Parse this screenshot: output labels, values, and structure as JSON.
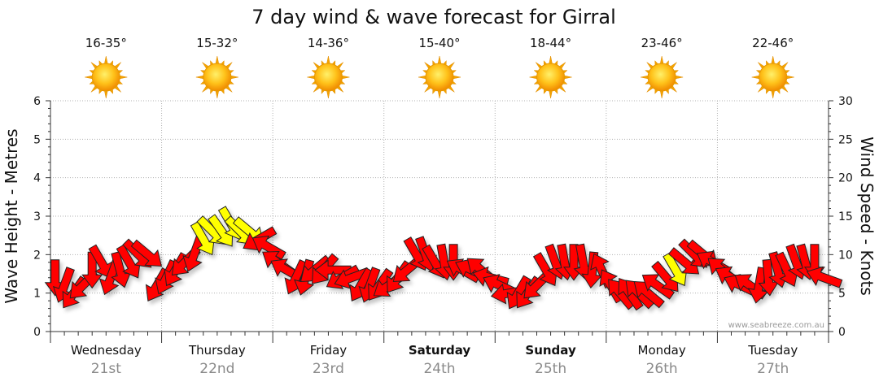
{
  "title": "7 day wind & wave forecast for Girral",
  "credit": "www.seabreeze.com.au",
  "days": [
    {
      "name": "Wednesday",
      "date": "21st",
      "temp": "16-35°",
      "weather_icon": "sun-icon",
      "bold": false
    },
    {
      "name": "Thursday",
      "date": "22nd",
      "temp": "15-32°",
      "weather_icon": "sun-icon",
      "bold": false
    },
    {
      "name": "Friday",
      "date": "23rd",
      "temp": "14-36°",
      "weather_icon": "sun-icon",
      "bold": false
    },
    {
      "name": "Saturday",
      "date": "24th",
      "temp": "15-40°",
      "weather_icon": "sun-icon",
      "bold": true
    },
    {
      "name": "Sunday",
      "date": "25th",
      "temp": "18-44°",
      "weather_icon": "sun-icon",
      "bold": true
    },
    {
      "name": "Monday",
      "date": "26th",
      "temp": "23-46°",
      "weather_icon": "sun-icon",
      "bold": false
    },
    {
      "name": "Tuesday",
      "date": "27th",
      "temp": "22-46°",
      "weather_icon": "sun-icon",
      "bold": false
    }
  ],
  "chart_data": {
    "type": "scatter",
    "title": "7 day wind & wave forecast for Girral",
    "ylabel_left": "Wave Height - Metres",
    "ylabel_right": "Wind Speed - Knots",
    "ylim_left": [
      0,
      6
    ],
    "ylim_right": [
      0,
      30
    ],
    "yticks_left": [
      "0",
      "1",
      "2",
      "3",
      "4",
      "5",
      "6"
    ],
    "yticks_right": [
      "0",
      "5",
      "10",
      "15",
      "20",
      "25",
      "30"
    ],
    "grid": true,
    "colors": {
      "light": "#ff0000",
      "moderate": "#ffff00",
      "arrow_outline": "#222222"
    },
    "series": [
      {
        "name": "wind",
        "marker": "direction-arrow",
        "units": "knots",
        "x": [
          "Wed 21 00:00",
          "Wed 21 02:00",
          "Wed 21 04:00",
          "Wed 21 06:00",
          "Wed 21 08:00",
          "Wed 21 10:00",
          "Wed 21 12:00",
          "Wed 21 14:00",
          "Wed 21 16:00",
          "Wed 21 18:00",
          "Wed 21 20:00",
          "Wed 21 22:00",
          "Thu 22 00:00",
          "Thu 22 02:00",
          "Thu 22 04:00",
          "Thu 22 06:00",
          "Thu 22 08:00",
          "Thu 22 10:00",
          "Thu 22 12:00",
          "Thu 22 14:00",
          "Thu 22 16:00",
          "Thu 22 18:00",
          "Thu 22 20:00",
          "Thu 22 22:00",
          "Fri 23 00:00",
          "Fri 23 02:00",
          "Fri 23 04:00",
          "Fri 23 06:00",
          "Fri 23 08:00",
          "Fri 23 10:00",
          "Fri 23 12:00",
          "Fri 23 14:00",
          "Fri 23 16:00",
          "Fri 23 18:00",
          "Fri 23 20:00",
          "Fri 23 22:00",
          "Sat 24 00:00",
          "Sat 24 02:00",
          "Sat 24 04:00",
          "Sat 24 06:00",
          "Sat 24 08:00",
          "Sat 24 10:00",
          "Sat 24 12:00",
          "Sat 24 14:00",
          "Sat 24 16:00",
          "Sat 24 18:00",
          "Sat 24 20:00",
          "Sat 24 22:00",
          "Sun 25 00:00",
          "Sun 25 02:00",
          "Sun 25 04:00",
          "Sun 25 06:00",
          "Sun 25 08:00",
          "Sun 25 10:00",
          "Sun 25 12:00",
          "Sun 25 14:00",
          "Sun 25 16:00",
          "Sun 25 18:00",
          "Sun 25 20:00",
          "Sun 25 22:00",
          "Mon 26 00:00",
          "Mon 26 02:00",
          "Mon 26 04:00",
          "Mon 26 06:00",
          "Mon 26 08:00",
          "Mon 26 10:00",
          "Mon 26 12:00",
          "Mon 26 14:00",
          "Mon 26 16:00",
          "Mon 26 18:00",
          "Mon 26 20:00",
          "Mon 26 22:00",
          "Tue 27 00:00",
          "Tue 27 02:00",
          "Tue 27 04:00",
          "Tue 27 06:00",
          "Tue 27 08:00",
          "Tue 27 10:00",
          "Tue 27 12:00",
          "Tue 27 14:00",
          "Tue 27 16:00",
          "Tue 27 18:00",
          "Tue 27 20:00",
          "Tue 27 22:00"
        ],
        "speed": [
          7,
          6,
          5,
          6,
          8,
          9,
          7,
          8,
          9,
          10,
          10,
          6,
          7,
          8,
          9,
          10,
          12,
          13,
          13,
          14,
          13,
          13,
          12,
          11,
          9,
          8,
          7,
          7,
          8,
          8,
          8,
          7,
          7,
          6,
          6,
          6,
          6,
          7,
          8,
          10,
          10,
          9,
          9,
          9,
          8,
          8,
          8,
          7,
          6,
          5,
          5,
          5,
          6,
          8,
          9,
          9,
          9,
          9,
          8,
          8,
          6,
          5,
          5,
          5,
          5,
          6,
          7,
          8,
          9,
          10,
          10,
          9,
          8,
          7,
          6,
          6,
          6,
          7,
          8,
          8,
          9,
          9,
          9,
          7
        ],
        "direction_to_deg": [
          270,
          250,
          235,
          225,
          270,
          300,
          250,
          285,
          300,
          315,
          320,
          240,
          245,
          240,
          225,
          250,
          300,
          315,
          305,
          300,
          315,
          320,
          210,
          150,
          145,
          150,
          245,
          255,
          220,
          230,
          180,
          210,
          200,
          240,
          250,
          235,
          215,
          235,
          220,
          300,
          290,
          300,
          280,
          270,
          150,
          155,
          140,
          165,
          155,
          190,
          240,
          235,
          225,
          300,
          290,
          280,
          270,
          280,
          265,
          115,
          120,
          130,
          125,
          135,
          140,
          145,
          310,
          300,
          320,
          315,
          320,
          150,
          140,
          150,
          155,
          145,
          260,
          275,
          285,
          295,
          290,
          285,
          270,
          160
        ],
        "level": [
          "light",
          "light",
          "light",
          "light",
          "light",
          "light",
          "light",
          "light",
          "light",
          "light",
          "light",
          "light",
          "light",
          "light",
          "light",
          "light",
          "moderate",
          "moderate",
          "moderate",
          "moderate",
          "moderate",
          "moderate",
          "light",
          "light",
          "light",
          "light",
          "light",
          "light",
          "light",
          "light",
          "light",
          "light",
          "light",
          "light",
          "light",
          "light",
          "light",
          "light",
          "light",
          "light",
          "light",
          "light",
          "light",
          "light",
          "light",
          "light",
          "light",
          "light",
          "light",
          "light",
          "light",
          "light",
          "light",
          "light",
          "light",
          "light",
          "light",
          "light",
          "light",
          "light",
          "light",
          "light",
          "light",
          "light",
          "light",
          "light",
          "light",
          "moderate",
          "light",
          "light",
          "light",
          "light",
          "light",
          "light",
          "light",
          "light",
          "light",
          "light",
          "light",
          "light",
          "light",
          "light",
          "light",
          "light"
        ]
      }
    ]
  }
}
